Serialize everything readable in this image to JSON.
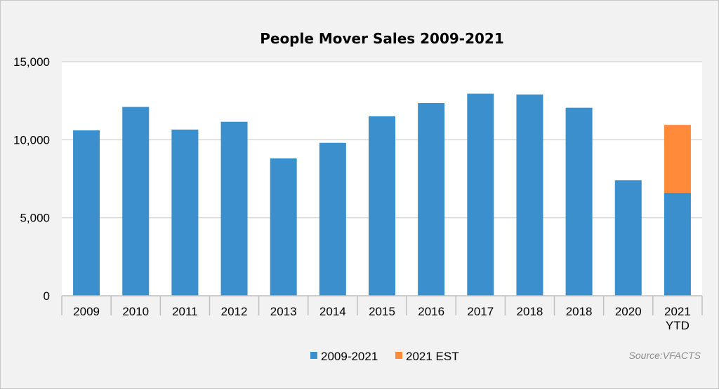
{
  "chart_data": {
    "type": "bar",
    "stacked": true,
    "title": "People Mover Sales 2009-2021",
    "categories": [
      "2009",
      "2010",
      "2011",
      "2012",
      "2013",
      "2014",
      "2015",
      "2016",
      "2017",
      "2018",
      "2018",
      "2020",
      "2021\nYTD"
    ],
    "series": [
      {
        "name": "2009-2021",
        "color": "#3a8fcc",
        "values": [
          10600,
          12100,
          10650,
          11150,
          8800,
          9800,
          11500,
          12350,
          12950,
          12900,
          12050,
          7400,
          6600
        ]
      },
      {
        "name": "2021 EST",
        "color": "#ff8a3a",
        "values": [
          null,
          null,
          null,
          null,
          null,
          null,
          null,
          null,
          null,
          null,
          null,
          null,
          4350
        ]
      }
    ],
    "ylim": [
      0,
      15000
    ],
    "yticks": [
      "0",
      "5,000",
      "10,000",
      "15,000"
    ],
    "ytick_values": [
      0,
      5000,
      10000,
      15000
    ],
    "grid": true,
    "legend_position": "bottom",
    "source": "Source:VFACTS"
  }
}
